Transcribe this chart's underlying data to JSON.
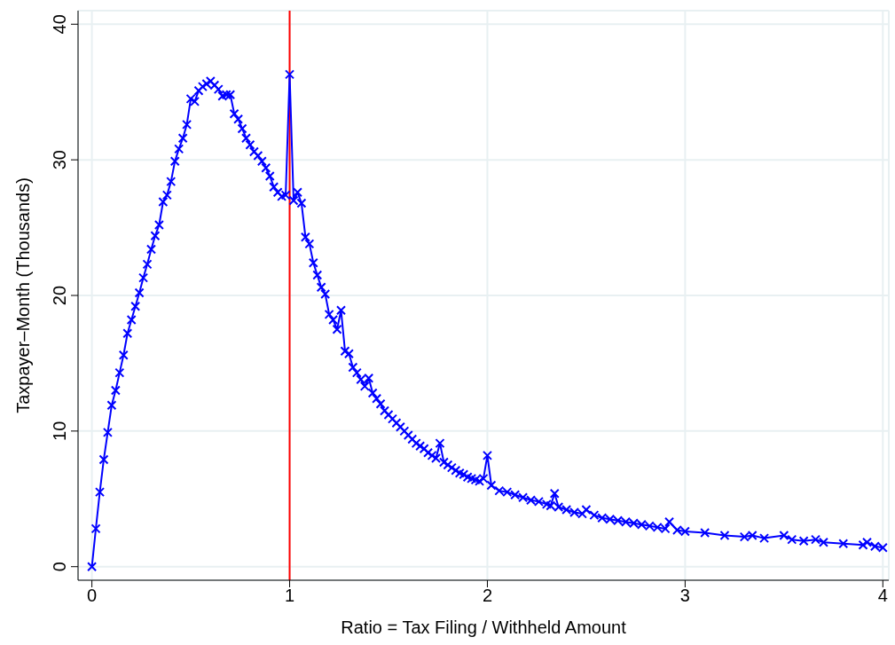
{
  "chart_data": {
    "type": "line",
    "xlabel": "Ratio = Tax Filing / Withheld Amount",
    "ylabel": "Taxpayer–Month (Thousands)",
    "xlim": [
      -0.07,
      4.03
    ],
    "ylim": [
      -1,
      41
    ],
    "xticks": [
      0,
      1,
      2,
      3,
      4
    ],
    "yticks": [
      0,
      10,
      20,
      30,
      40
    ],
    "grid": true,
    "marker": "cross",
    "line_style": "solid",
    "ref_lines": [
      {
        "axis": "x",
        "value": 1,
        "color": "#ff0000"
      }
    ],
    "series": [
      {
        "color": "#0000ff",
        "x": [
          0,
          0.02,
          0.04,
          0.06,
          0.08,
          0.1,
          0.12,
          0.14,
          0.16,
          0.18,
          0.2,
          0.22,
          0.24,
          0.26,
          0.28,
          0.3,
          0.32,
          0.34,
          0.36,
          0.38,
          0.4,
          0.42,
          0.44,
          0.46,
          0.48,
          0.5,
          0.52,
          0.54,
          0.56,
          0.58,
          0.6,
          0.62,
          0.64,
          0.66,
          0.68,
          0.7,
          0.72,
          0.74,
          0.76,
          0.78,
          0.8,
          0.82,
          0.84,
          0.86,
          0.88,
          0.9,
          0.92,
          0.94,
          0.96,
          0.98,
          1,
          1.02,
          1.04,
          1.06,
          1.08,
          1.1,
          1.12,
          1.14,
          1.16,
          1.18,
          1.2,
          1.22,
          1.24,
          1.26,
          1.28,
          1.3,
          1.32,
          1.34,
          1.36,
          1.38,
          1.4,
          1.42,
          1.44,
          1.46,
          1.48,
          1.5,
          1.52,
          1.54,
          1.56,
          1.58,
          1.6,
          1.62,
          1.64,
          1.66,
          1.68,
          1.7,
          1.72,
          1.74,
          1.76,
          1.78,
          1.8,
          1.82,
          1.84,
          1.86,
          1.88,
          1.9,
          1.92,
          1.94,
          1.96,
          1.98,
          2,
          2.02,
          2.06,
          2.1,
          2.14,
          2.18,
          2.22,
          2.26,
          2.3,
          2.32,
          2.34,
          2.36,
          2.4,
          2.44,
          2.48,
          2.5,
          2.54,
          2.58,
          2.62,
          2.66,
          2.7,
          2.74,
          2.78,
          2.82,
          2.86,
          2.9,
          2.92,
          2.96,
          3,
          3.1,
          3.2,
          3.3,
          3.34,
          3.4,
          3.5,
          3.54,
          3.6,
          3.66,
          3.7,
          3.8,
          3.9,
          3.92,
          3.96,
          4
        ],
        "values": [
          0,
          2.8,
          5.5,
          7.9,
          9.9,
          11.9,
          13,
          14.3,
          15.6,
          17.2,
          18.2,
          19.2,
          20.2,
          21.3,
          22.3,
          23.4,
          24.4,
          25.2,
          26.9,
          27.4,
          28.4,
          29.9,
          30.8,
          31.6,
          32.6,
          34.5,
          34.3,
          35.1,
          35.4,
          35.6,
          35.8,
          35.5,
          35.2,
          34.7,
          34.8,
          34.8,
          33.4,
          33,
          32.3,
          31.6,
          31.1,
          30.6,
          30.3,
          29.9,
          29.4,
          28.8,
          28,
          27.6,
          27.3,
          27.4,
          36.3,
          27,
          27.6,
          26.8,
          24.3,
          23.8,
          22.4,
          21.5,
          20.6,
          20.1,
          18.6,
          18.2,
          17.5,
          18.9,
          15.9,
          15.7,
          14.7,
          14.3,
          13.8,
          13.3,
          13.9,
          12.8,
          12.4,
          12,
          11.5,
          11.2,
          10.9,
          10.6,
          10.3,
          10,
          9.7,
          9.4,
          9.1,
          8.9,
          8.7,
          8.4,
          8.2,
          8,
          9.1,
          7.7,
          7.5,
          7.3,
          7.1,
          6.9,
          6.8,
          6.6,
          6.5,
          6.4,
          6.3,
          6.5,
          8.2,
          6,
          5.6,
          5.5,
          5.3,
          5.1,
          4.9,
          4.8,
          4.6,
          4.5,
          5.4,
          4.4,
          4.2,
          4,
          3.9,
          4.2,
          3.8,
          3.6,
          3.5,
          3.4,
          3.3,
          3.2,
          3.1,
          3,
          2.9,
          2.8,
          3.3,
          2.7,
          2.6,
          2.5,
          2.3,
          2.2,
          2.3,
          2.1,
          2.3,
          2,
          1.9,
          2,
          1.8,
          1.7,
          1.6,
          1.8,
          1.5,
          1.4
        ]
      }
    ]
  }
}
